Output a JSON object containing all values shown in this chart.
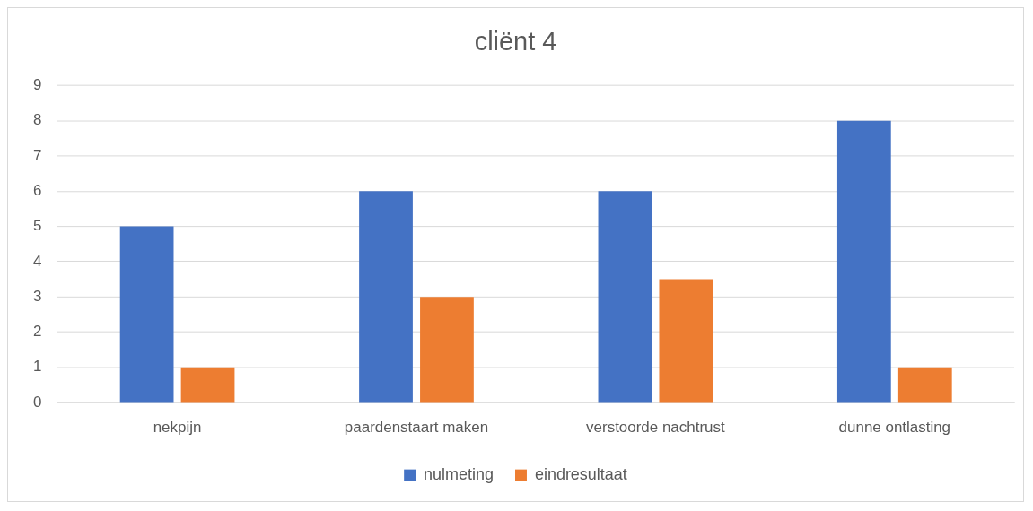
{
  "chart_data": {
    "type": "bar",
    "title": "cliënt 4",
    "categories": [
      "nekpijn",
      "paardenstaart maken",
      "verstoorde nachtrust",
      "dunne ontlasting"
    ],
    "series": [
      {
        "name": "nulmeting",
        "color": "#4472c4",
        "values": [
          5,
          6,
          6,
          8
        ]
      },
      {
        "name": "eindresultaat",
        "color": "#ed7d31",
        "values": [
          1,
          3,
          3.5,
          1
        ]
      }
    ],
    "ylim": [
      0,
      9
    ],
    "yticks": [
      0,
      1,
      2,
      3,
      4,
      5,
      6,
      7,
      8,
      9
    ],
    "grid": "y",
    "legend": "bottom"
  }
}
